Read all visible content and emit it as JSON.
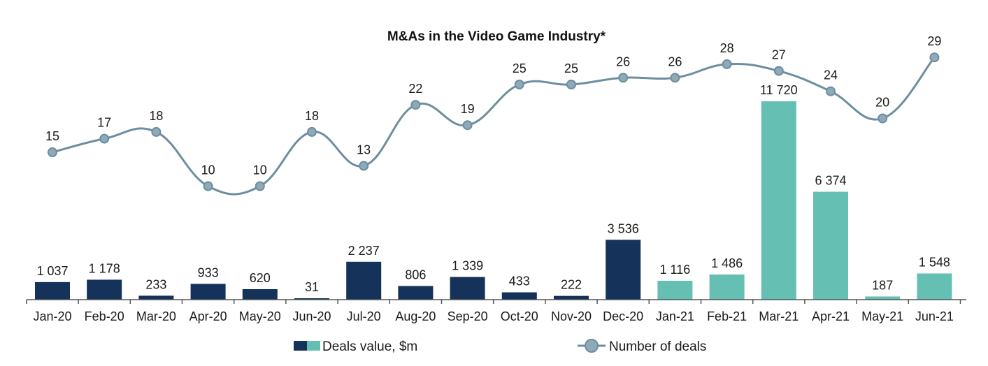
{
  "chart_data": {
    "type": "bar+line",
    "title": "M&As in the Video Game Industry*",
    "categories": [
      "Jan-20",
      "Feb-20",
      "Mar-20",
      "Apr-20",
      "May-20",
      "Jun-20",
      "Jul-20",
      "Aug-20",
      "Sep-20",
      "Oct-20",
      "Nov-20",
      "Dec-20",
      "Jan-21",
      "Feb-21",
      "Mar-21",
      "Apr-21",
      "May-21",
      "Jun-21"
    ],
    "bars": {
      "name": "Deals value, $m",
      "values": [
        1037,
        1178,
        233,
        933,
        620,
        31,
        2237,
        806,
        1339,
        433,
        222,
        3536,
        1116,
        1486,
        11720,
        6374,
        187,
        1548
      ],
      "labels": [
        "1 037",
        "1 178",
        "233",
        "933",
        "620",
        "31",
        "2 237",
        "806",
        "1 339",
        "433",
        "222",
        "3 536",
        "1 116",
        "1 486",
        "11 720",
        "6 374",
        "187",
        "1 548"
      ],
      "colors_by_year": {
        "2020": "#14325a",
        "2021": "#65bfb3"
      }
    },
    "line": {
      "name": "Number of deals",
      "values": [
        15,
        17,
        18,
        10,
        10,
        18,
        13,
        22,
        19,
        25,
        25,
        26,
        26,
        28,
        27,
        24,
        20,
        29
      ],
      "color": "#6d8ea0"
    },
    "legend_position": "bottom",
    "grid": false
  }
}
